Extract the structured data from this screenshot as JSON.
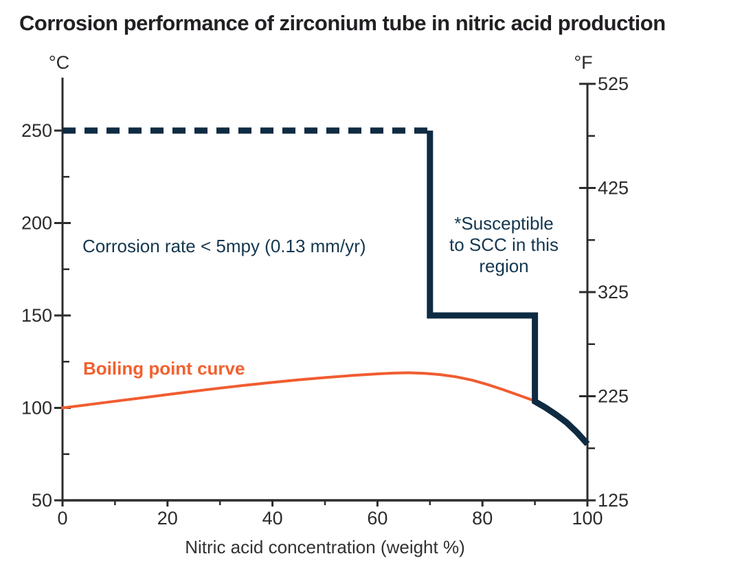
{
  "title": "Corrosion performance of zirconium tube in nitric acid production",
  "colors": {
    "navy_line": "#0e2b42",
    "navy_text": "#14374f",
    "orange": "#f15c30",
    "axis": "#2b2b2b",
    "tick_text": "#2b2b2b"
  },
  "annotations": {
    "corrosion_note": "Corrosion rate < 5mpy (0.13 mm/yr)",
    "scc_note": "*Susceptible\nto SCC in this\nregion",
    "boiling_label": "Boiling point curve"
  },
  "chart_data": {
    "type": "line",
    "title": "Corrosion performance of zirconium tube in nitric acid production",
    "xlabel": "Nitric acid concentration (weight %)",
    "x_axis": {
      "min": 0,
      "max": 100,
      "major_ticks": [
        0,
        20,
        40,
        60,
        80,
        100
      ],
      "minor_ticks": [
        10,
        30,
        50,
        70,
        90
      ]
    },
    "y_axis_left": {
      "label": "°C",
      "min": 50,
      "max": 250,
      "major_ticks": [
        50,
        100,
        150,
        200,
        250
      ],
      "minor_ticks": [
        75,
        125,
        175,
        225
      ]
    },
    "y_axis_right": {
      "label": "°F",
      "min": 125,
      "max": 525,
      "major_ticks": [
        125,
        225,
        325,
        425,
        525
      ],
      "minor_ticks": [
        175,
        275,
        375,
        475
      ]
    },
    "grid": false,
    "legend": "none (labels drawn as in-plot annotations)",
    "series": [
      {
        "name": "corrosion-limit-dashed",
        "description": "Upper tested corrosion-resistance limit at 250 °C (dashed)",
        "style": "dashed",
        "color": "#0e2b42",
        "units": [
          "weight %",
          "°C"
        ],
        "points": [
          [
            0,
            250
          ],
          [
            70,
            250
          ]
        ]
      },
      {
        "name": "corrosion-boundary-solid",
        "description": "Corrosion performance boundary; region left of line has corrosion rate < 5 mpy; SCC-susceptible region to the right",
        "style": "solid",
        "color": "#0e2b42",
        "units": [
          "weight %",
          "°C"
        ],
        "points": [
          [
            70,
            250
          ],
          [
            70,
            150
          ],
          [
            90,
            150
          ],
          [
            90,
            103.5
          ],
          [
            92,
            100.2
          ],
          [
            94,
            96.4
          ],
          [
            96,
            92.2
          ],
          [
            98,
            86.8
          ],
          [
            100,
            80.5
          ]
        ]
      },
      {
        "name": "boiling-point-curve",
        "description": "Boiling point curve of nitric acid solution",
        "style": "solid",
        "color": "#f15c30",
        "units": [
          "weight %",
          "°C"
        ],
        "points": [
          [
            0,
            100
          ],
          [
            5,
            101.8
          ],
          [
            10,
            103.6
          ],
          [
            15,
            105.4
          ],
          [
            20,
            107.2
          ],
          [
            25,
            109
          ],
          [
            30,
            110.7
          ],
          [
            35,
            112.3
          ],
          [
            40,
            113.8
          ],
          [
            45,
            115.2
          ],
          [
            50,
            116.4
          ],
          [
            55,
            117.5
          ],
          [
            60,
            118.4
          ],
          [
            63,
            118.8
          ],
          [
            66,
            119
          ],
          [
            69,
            118.7
          ],
          [
            72,
            118
          ],
          [
            75,
            116.8
          ],
          [
            78,
            115
          ],
          [
            81,
            112.6
          ],
          [
            84,
            109.8
          ],
          [
            87,
            106.8
          ],
          [
            90,
            103.7
          ]
        ]
      }
    ]
  }
}
